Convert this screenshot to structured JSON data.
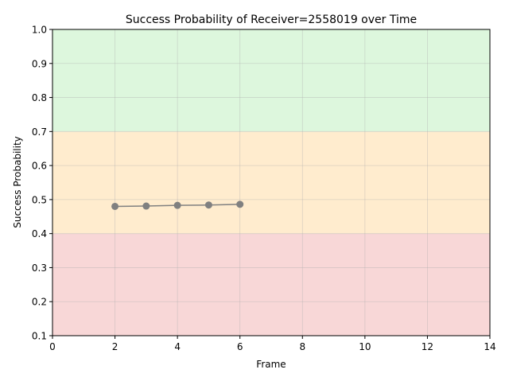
{
  "chart_data": {
    "type": "line",
    "title": "Success Probability of Receiver=2558019 over Time",
    "xlabel": "Frame",
    "ylabel": "Success Probability",
    "xlim": [
      0,
      14
    ],
    "ylim": [
      0.1,
      1.0
    ],
    "x_ticks": [
      0,
      2,
      4,
      6,
      8,
      10,
      12,
      14
    ],
    "y_ticks": [
      0.1,
      0.2,
      0.3,
      0.4,
      0.5,
      0.6,
      0.7,
      0.8,
      0.9,
      1.0
    ],
    "x_tick_labels": [
      "0",
      "2",
      "4",
      "6",
      "8",
      "10",
      "12",
      "14"
    ],
    "y_tick_labels": [
      "0.1",
      "0.2",
      "0.3",
      "0.4",
      "0.5",
      "0.6",
      "0.7",
      "0.8",
      "0.9",
      "1.0"
    ],
    "grid": true,
    "bands": [
      {
        "from": 0.1,
        "to": 0.4,
        "color": "#f8d7d7"
      },
      {
        "from": 0.4,
        "to": 0.7,
        "color": "#ffecce"
      },
      {
        "from": 0.7,
        "to": 1.0,
        "color": "#ddf7dd"
      }
    ],
    "series": [
      {
        "x": [
          2,
          3,
          4,
          5,
          6
        ],
        "y": [
          0.48,
          0.481,
          0.483,
          0.484,
          0.486
        ],
        "color": "#808080",
        "marker": "circle"
      }
    ]
  }
}
